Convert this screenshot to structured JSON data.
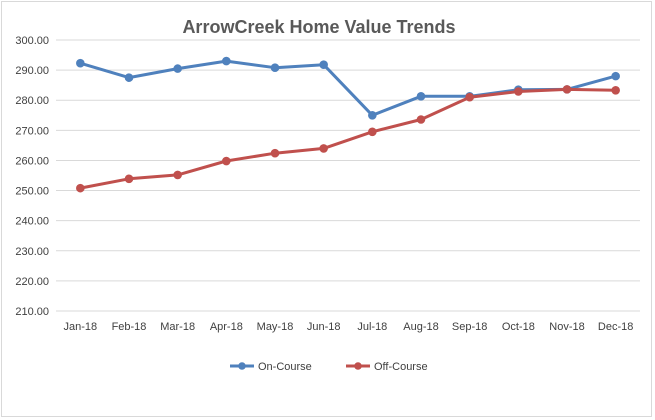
{
  "chart_data": {
    "type": "line",
    "title": "ArrowCreek Home Value Trends",
    "xlabel": "",
    "ylabel": "",
    "ylim": [
      210,
      300
    ],
    "yticks": [
      "300.00",
      "290.00",
      "280.00",
      "270.00",
      "260.00",
      "250.00",
      "240.00",
      "230.00",
      "220.00",
      "210.00"
    ],
    "categories": [
      "Jan-18",
      "Feb-18",
      "Mar-18",
      "Apr-18",
      "May-18",
      "Jun-18",
      "Jul-18",
      "Aug-18",
      "Sep-18",
      "Oct-18",
      "Nov-18",
      "Dec-18"
    ],
    "series": [
      {
        "name": "On-Course",
        "color": "#4f81bd",
        "values": [
          292.3,
          287.5,
          290.5,
          293.0,
          290.8,
          291.8,
          275.0,
          281.3,
          281.3,
          283.5,
          283.6,
          288.0
        ]
      },
      {
        "name": "Off-Course",
        "color": "#c0504d",
        "values": [
          250.8,
          253.9,
          255.2,
          259.8,
          262.4,
          264.0,
          269.5,
          273.6,
          281.0,
          282.9,
          283.6,
          283.3
        ]
      }
    ],
    "grid": true,
    "legend": "bottom"
  }
}
